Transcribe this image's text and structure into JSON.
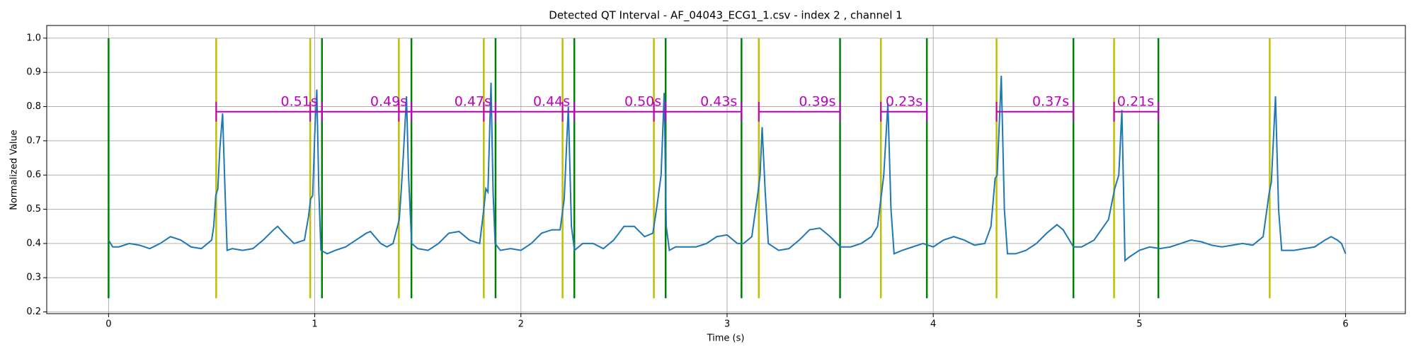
{
  "chart_data": {
    "type": "line",
    "title": "Detected QT Interval - AF_04043_ECG1_1.csv - index 2 , channel 1",
    "xlabel": "Time (s)",
    "ylabel": "Normalized Value",
    "xlim": [
      -0.3,
      6.29
    ],
    "ylim": [
      0.195,
      1.037
    ],
    "xticks": [
      0,
      1,
      2,
      3,
      4,
      5,
      6
    ],
    "yticks": [
      0.2,
      0.3,
      0.4,
      0.5,
      0.6,
      0.7,
      0.8,
      0.9,
      {
        "value": 1,
        "label": "1.0"
      }
    ],
    "grid": true,
    "series": [
      {
        "color": "#1f77b4",
        "x": [
          0,
          0.02,
          0.05,
          0.1,
          0.15,
          0.2,
          0.25,
          0.3,
          0.35,
          0.4,
          0.45,
          0.5,
          0.51,
          0.52,
          0.53,
          0.54,
          0.553,
          0.565,
          0.575,
          0.6,
          0.65,
          0.7,
          0.75,
          0.8,
          0.82,
          0.85,
          0.9,
          0.95,
          0.97,
          0.98,
          0.99,
          1.0,
          1.01,
          1.02,
          1.03,
          1.06,
          1.1,
          1.15,
          1.2,
          1.25,
          1.27,
          1.32,
          1.35,
          1.38,
          1.41,
          1.42,
          1.43,
          1.445,
          1.455,
          1.47,
          1.5,
          1.55,
          1.6,
          1.65,
          1.7,
          1.75,
          1.8,
          1.82,
          1.83,
          1.84,
          1.855,
          1.865,
          1.875,
          1.9,
          1.95,
          2.0,
          2.05,
          2.1,
          2.15,
          2.19,
          2.21,
          2.23,
          2.245,
          2.26,
          2.3,
          2.35,
          2.4,
          2.45,
          2.5,
          2.55,
          2.6,
          2.64,
          2.66,
          2.68,
          2.695,
          2.705,
          2.72,
          2.75,
          2.8,
          2.85,
          2.9,
          2.95,
          3.0,
          3.05,
          3.08,
          3.12,
          3.15,
          3.16,
          3.17,
          3.185,
          3.2,
          3.25,
          3.3,
          3.35,
          3.4,
          3.45,
          3.5,
          3.55,
          3.6,
          3.65,
          3.7,
          3.73,
          3.75,
          3.76,
          3.78,
          3.795,
          3.81,
          3.85,
          3.9,
          3.95,
          4.0,
          4.05,
          4.1,
          4.15,
          4.2,
          4.25,
          4.28,
          4.3,
          4.31,
          4.33,
          4.345,
          4.36,
          4.4,
          4.45,
          4.5,
          4.55,
          4.6,
          4.63,
          4.68,
          4.72,
          4.78,
          4.85,
          4.88,
          4.9,
          4.915,
          4.93,
          4.95,
          5.0,
          5.05,
          5.1,
          5.15,
          5.2,
          5.25,
          5.3,
          5.35,
          5.4,
          5.45,
          5.5,
          5.55,
          5.6,
          5.63,
          5.64,
          5.66,
          5.675,
          5.69,
          5.75,
          5.8,
          5.85,
          5.9,
          5.93,
          5.96,
          5.98,
          6.0
        ],
        "values": [
          0.41,
          0.39,
          0.39,
          0.4,
          0.395,
          0.385,
          0.4,
          0.42,
          0.41,
          0.39,
          0.385,
          0.41,
          0.45,
          0.54,
          0.56,
          0.68,
          0.78,
          0.55,
          0.38,
          0.385,
          0.38,
          0.385,
          0.41,
          0.44,
          0.45,
          0.43,
          0.4,
          0.41,
          0.48,
          0.53,
          0.54,
          0.72,
          0.85,
          0.55,
          0.38,
          0.37,
          0.38,
          0.39,
          0.41,
          0.43,
          0.435,
          0.4,
          0.39,
          0.4,
          0.47,
          0.56,
          0.66,
          0.83,
          0.6,
          0.4,
          0.385,
          0.38,
          0.4,
          0.43,
          0.435,
          0.41,
          0.4,
          0.5,
          0.56,
          0.55,
          0.87,
          0.55,
          0.4,
          0.38,
          0.385,
          0.38,
          0.4,
          0.43,
          0.44,
          0.44,
          0.53,
          0.8,
          0.45,
          0.38,
          0.4,
          0.4,
          0.385,
          0.41,
          0.45,
          0.45,
          0.42,
          0.43,
          0.51,
          0.6,
          0.84,
          0.45,
          0.38,
          0.39,
          0.39,
          0.39,
          0.4,
          0.42,
          0.425,
          0.4,
          0.4,
          0.42,
          0.55,
          0.6,
          0.74,
          0.55,
          0.4,
          0.38,
          0.385,
          0.41,
          0.44,
          0.445,
          0.42,
          0.39,
          0.39,
          0.4,
          0.42,
          0.45,
          0.55,
          0.6,
          0.81,
          0.5,
          0.37,
          0.38,
          0.39,
          0.4,
          0.39,
          0.41,
          0.42,
          0.41,
          0.395,
          0.4,
          0.45,
          0.59,
          0.6,
          0.89,
          0.5,
          0.37,
          0.37,
          0.38,
          0.4,
          0.43,
          0.455,
          0.44,
          0.39,
          0.39,
          0.41,
          0.47,
          0.56,
          0.6,
          0.79,
          0.35,
          0.36,
          0.38,
          0.39,
          0.385,
          0.39,
          0.4,
          0.41,
          0.405,
          0.395,
          0.39,
          0.395,
          0.4,
          0.395,
          0.42,
          0.55,
          0.58,
          0.83,
          0.5,
          0.38,
          0.38,
          0.385,
          0.39,
          0.41,
          0.42,
          0.41,
          0.4,
          0.37
        ]
      }
    ],
    "vlines": [
      {
        "color": "#bfbf00",
        "ymin": 0.24,
        "ymax": 1.0,
        "x": [
          0.522,
          0.978,
          1.408,
          1.82,
          2.202,
          2.645,
          3.154,
          3.746,
          4.307,
          4.877,
          5.632
        ]
      },
      {
        "color": "#008000",
        "ymin": 0.24,
        "ymax": 1.0,
        "x": [
          0,
          1.035,
          1.469,
          1.877,
          2.259,
          2.702,
          3.07,
          3.548,
          3.969,
          4.68,
          5.092
        ]
      }
    ],
    "intervals": {
      "color": "#bf00bf",
      "y": 0.785,
      "items": [
        {
          "start": 0.522,
          "end": 1.035,
          "label": "0.51s"
        },
        {
          "start": 0.978,
          "end": 1.469,
          "label": "0.49s"
        },
        {
          "start": 1.408,
          "end": 1.877,
          "label": "0.47s"
        },
        {
          "start": 1.82,
          "end": 2.259,
          "label": "0.44s"
        },
        {
          "start": 2.202,
          "end": 2.702,
          "label": "0.50s"
        },
        {
          "start": 2.645,
          "end": 3.07,
          "label": "0.43s"
        },
        {
          "start": 3.154,
          "end": 3.548,
          "label": "0.39s"
        },
        {
          "start": 3.746,
          "end": 3.969,
          "label": "0.23s"
        },
        {
          "start": 4.307,
          "end": 4.68,
          "label": "0.37s"
        },
        {
          "start": 4.877,
          "end": 5.092,
          "label": "0.21s"
        }
      ]
    }
  }
}
